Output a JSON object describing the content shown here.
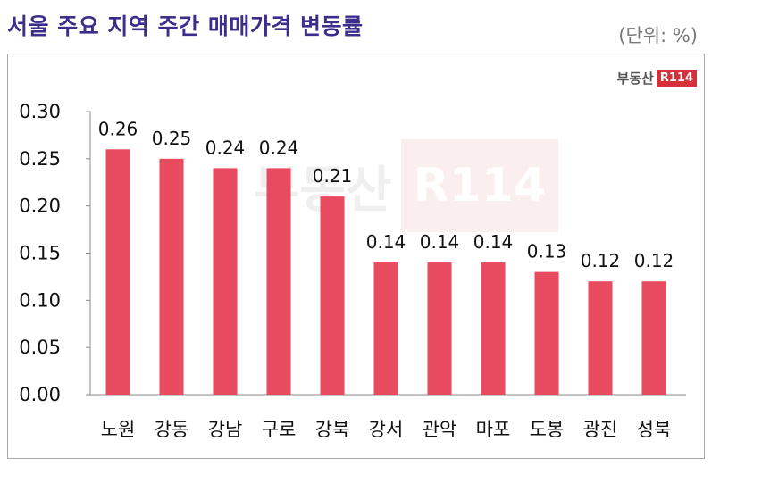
{
  "title": "서울 주요 지역 주간 매매가격 변동률",
  "unit": "(단위: %)",
  "logo": {
    "text": "부동산",
    "box": "R114"
  },
  "colors": {
    "bar": "#e84a5f",
    "title": "#3c2f8c",
    "axis": "#888888"
  },
  "chart_data": {
    "type": "bar",
    "title": "서울 주요 지역 주간 매매가격 변동률",
    "xlabel": "",
    "ylabel": "",
    "unit": "%",
    "categories": [
      "노원",
      "강동",
      "강남",
      "구로",
      "강북",
      "강서",
      "관악",
      "마포",
      "도봉",
      "광진",
      "성북"
    ],
    "values": [
      0.26,
      0.25,
      0.24,
      0.24,
      0.21,
      0.14,
      0.14,
      0.14,
      0.13,
      0.12,
      0.12
    ],
    "ylim": [
      0,
      0.3
    ],
    "yticks": [
      "0.00",
      "0.05",
      "0.10",
      "0.15",
      "0.20",
      "0.25",
      "0.30"
    ],
    "data_labels": [
      "0.26",
      "0.25",
      "0.24",
      "0.24",
      "0.21",
      "0.14",
      "0.14",
      "0.14",
      "0.13",
      "0.12",
      "0.12"
    ],
    "grid": false,
    "legend": "none"
  }
}
